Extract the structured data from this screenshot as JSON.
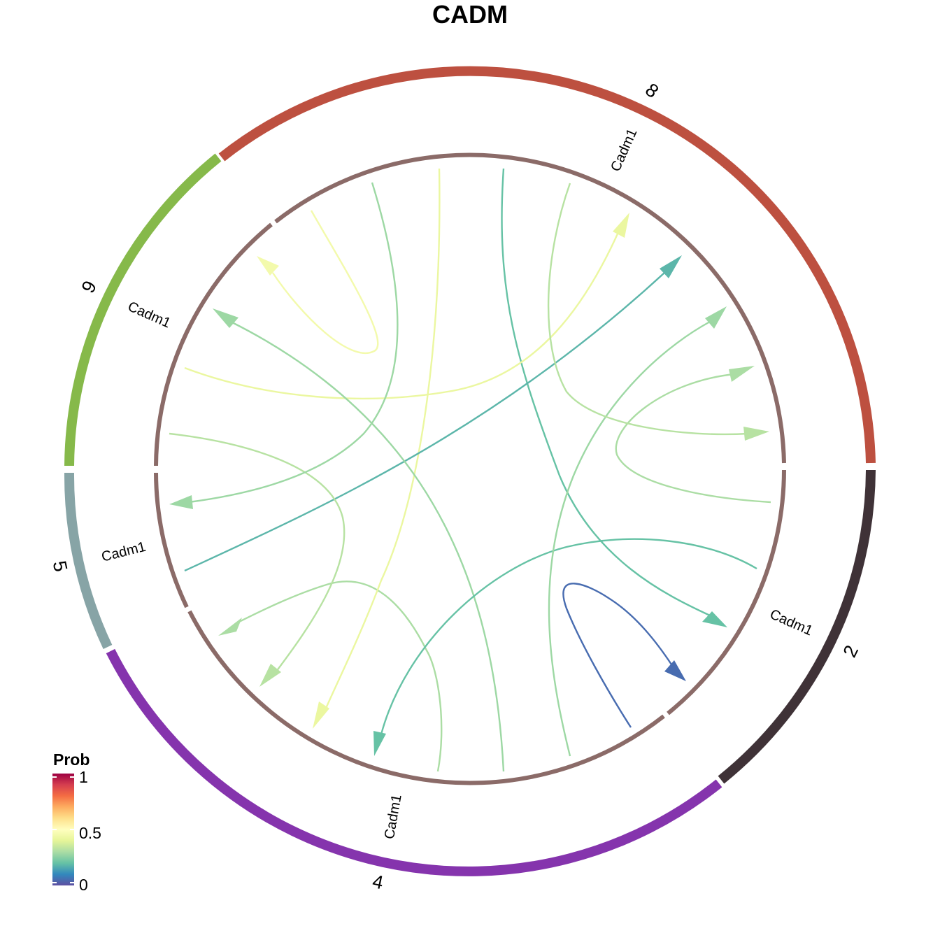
{
  "title": "CADM",
  "colors": {
    "sector_8": "#BD5040",
    "sector_2": "#3F3237",
    "sector_4": "#8534AD",
    "sector_5": "#87A4A6",
    "sector_9": "#86B94A",
    "inner_track": "#8B6B68"
  },
  "sectors": [
    {
      "id": "8",
      "label": "8"
    },
    {
      "id": "2",
      "label": "2"
    },
    {
      "id": "4",
      "label": "4"
    },
    {
      "id": "5",
      "label": "5"
    },
    {
      "id": "9",
      "label": "9"
    }
  ],
  "genes": [
    {
      "sector": "8",
      "label": "Cadm1"
    },
    {
      "sector": "2",
      "label": "Cadm1"
    },
    {
      "sector": "4",
      "label": "Cadm1"
    },
    {
      "sector": "5",
      "label": "Cadm1"
    },
    {
      "sector": "9",
      "label": "Cadm1"
    }
  ],
  "chart_data": {
    "type": "chord",
    "title": "CADM",
    "links": [
      {
        "from": "4",
        "to": "8",
        "prob": 0.3
      },
      {
        "from": "4",
        "to": "8",
        "prob": 0.42
      },
      {
        "from": "4",
        "to": "2",
        "prob": 0.2
      },
      {
        "from": "4",
        "to": "2",
        "prob": 0.05
      },
      {
        "from": "4",
        "to": "8",
        "prob": 0.3
      },
      {
        "from": "8",
        "to": "5",
        "prob": 0.18
      },
      {
        "from": "8",
        "to": "9",
        "prob": 0.32
      },
      {
        "from": "8",
        "to": "4",
        "prob": 0.42
      },
      {
        "from": "8",
        "to": "2",
        "prob": 0.28
      },
      {
        "from": "8",
        "to": "8",
        "prob": 0.45
      },
      {
        "from": "2",
        "to": "8",
        "prob": 0.28
      },
      {
        "from": "2",
        "to": "4",
        "prob": 0.2
      },
      {
        "from": "9",
        "to": "8",
        "prob": 0.28
      },
      {
        "from": "9",
        "to": "9",
        "prob": 0.32
      },
      {
        "from": "9",
        "to": "4",
        "prob": 0.2
      },
      {
        "from": "5",
        "to": "8",
        "prob": 0.2
      },
      {
        "from": "5",
        "to": "4",
        "prob": 0.18
      },
      {
        "from": "5",
        "to": "5",
        "prob": 0.3
      }
    ]
  },
  "legend": {
    "title": "Prob",
    "ticks": [
      {
        "label": "1",
        "value": 1
      },
      {
        "label": "0.5",
        "value": 0.5
      },
      {
        "label": "0",
        "value": 0
      }
    ],
    "colors": [
      "#5E4FA2",
      "#3288BD",
      "#66C2A5",
      "#ABDDA4",
      "#E6F598",
      "#FFFFBF",
      "#FEE08B",
      "#FDAE61",
      "#F46D43",
      "#D53E4F",
      "#9E0142"
    ]
  }
}
